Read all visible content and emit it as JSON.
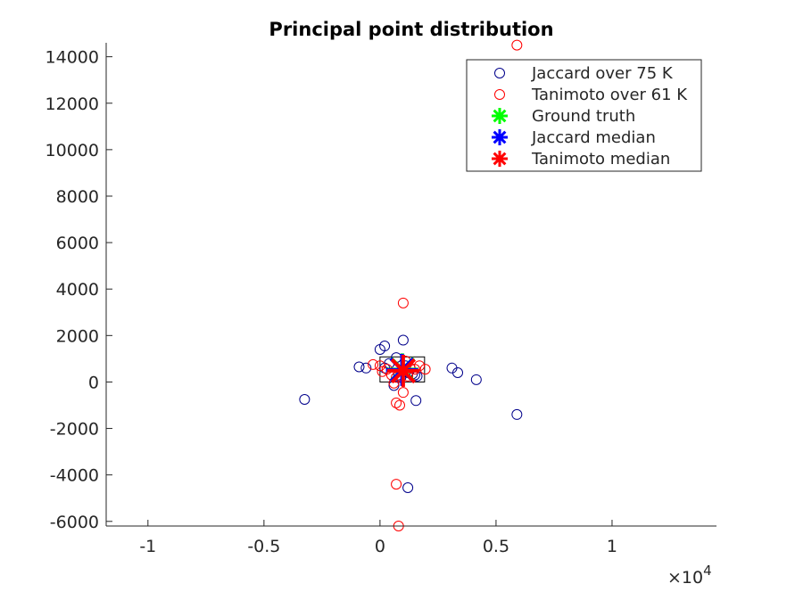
{
  "chart_data": {
    "type": "scatter",
    "title": "Principal point distribution",
    "xlabel": "",
    "ylabel": "",
    "x_exponent_label": "×10",
    "x_exponent_power": "4",
    "xlim": [
      -11800,
      14500
    ],
    "ylim": [
      -6200,
      14600
    ],
    "x_ticks": [
      {
        "value": -10000,
        "label": "-1"
      },
      {
        "value": -5000,
        "label": "-0.5"
      },
      {
        "value": 0,
        "label": "0"
      },
      {
        "value": 5000,
        "label": "0.5"
      },
      {
        "value": 10000,
        "label": "1"
      }
    ],
    "y_ticks": [
      {
        "value": -6000,
        "label": "-6000"
      },
      {
        "value": -4000,
        "label": "-4000"
      },
      {
        "value": -2000,
        "label": "-2000"
      },
      {
        "value": 0,
        "label": "0"
      },
      {
        "value": 2000,
        "label": "2000"
      },
      {
        "value": 4000,
        "label": "4000"
      },
      {
        "value": 6000,
        "label": "6000"
      },
      {
        "value": 8000,
        "label": "8000"
      },
      {
        "value": 10000,
        "label": "10000"
      },
      {
        "value": 12000,
        "label": "12000"
      },
      {
        "value": 14000,
        "label": "14000"
      }
    ],
    "grid": false,
    "legend_position": "top-right",
    "image_box": {
      "x": [
        0,
        1920
      ],
      "y": [
        0,
        1080
      ]
    },
    "series": [
      {
        "name": "Jaccard over 75 K",
        "marker": "circle",
        "color": "#00008b",
        "points": [
          [
            -3250,
            -750
          ],
          [
            -900,
            650
          ],
          [
            -600,
            600
          ],
          [
            0,
            1400
          ],
          [
            200,
            1550
          ],
          [
            700,
            1050
          ],
          [
            1000,
            1800
          ],
          [
            200,
            600
          ],
          [
            400,
            800
          ],
          [
            600,
            -150
          ],
          [
            800,
            300
          ],
          [
            1000,
            500
          ],
          [
            1200,
            400
          ],
          [
            1400,
            350
          ],
          [
            1500,
            300
          ],
          [
            1600,
            250
          ],
          [
            1100,
            700
          ],
          [
            900,
            200
          ],
          [
            1300,
            600
          ],
          [
            1550,
            -800
          ],
          [
            1200,
            -4550
          ],
          [
            3100,
            600
          ],
          [
            3350,
            400
          ],
          [
            4150,
            100
          ],
          [
            5900,
            -1400
          ]
        ]
      },
      {
        "name": "Tanimoto over 61 K",
        "marker": "circle",
        "color": "#ff0000",
        "points": [
          [
            -300,
            750
          ],
          [
            0,
            700
          ],
          [
            100,
            450
          ],
          [
            300,
            550
          ],
          [
            500,
            300
          ],
          [
            700,
            200
          ],
          [
            1100,
            900
          ],
          [
            1300,
            600
          ],
          [
            1500,
            550
          ],
          [
            1700,
            700
          ],
          [
            1950,
            550
          ],
          [
            1000,
            3400
          ],
          [
            700,
            -900
          ],
          [
            850,
            -1000
          ],
          [
            1000,
            -450
          ],
          [
            700,
            -4400
          ],
          [
            800,
            -6200
          ],
          [
            5900,
            14500
          ],
          [
            600,
            -50
          ],
          [
            1200,
            250
          ]
        ]
      },
      {
        "name": "Ground truth",
        "marker": "asterisk",
        "color": "#00ff00",
        "points": [
          [
            960,
            540
          ]
        ]
      },
      {
        "name": "Jaccard median",
        "marker": "asterisk",
        "color": "#0000ff",
        "points": [
          [
            950,
            520
          ]
        ]
      },
      {
        "name": "Tanimoto median",
        "marker": "asterisk",
        "color": "#ff0000",
        "points": [
          [
            1000,
            480
          ]
        ]
      }
    ]
  }
}
